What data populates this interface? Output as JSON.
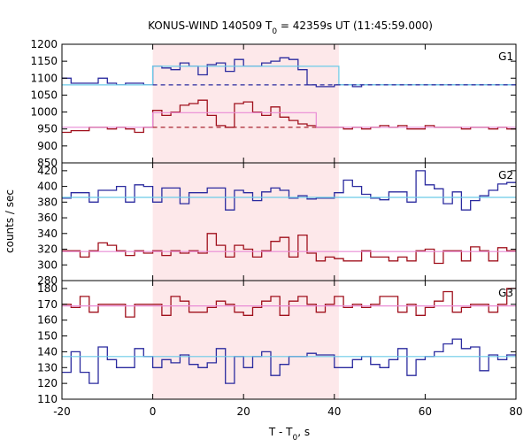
{
  "chart_data": {
    "type": "line",
    "title": "KONUS-WIND 140509 T",
    "title_sub": "0",
    "title_rest": " = 42359s UT (11:45:59.000)",
    "xlabel": "T - T",
    "xlabel_sub": "0",
    "xlabel_rest": ", s",
    "ylabel": "counts / sec",
    "xlim": [
      -20,
      80
    ],
    "x_ticks": [
      -20,
      0,
      20,
      40,
      60,
      80
    ],
    "shaded_interval": [
      0,
      41
    ],
    "grid": false,
    "bin_width": 2,
    "colors": {
      "blue": "#2b2b9f",
      "red": "#a0101c",
      "cyan": "#6bcbe8",
      "pink": "#e98bd6",
      "shade": "#fde8ea"
    },
    "panels": [
      {
        "label": "G1",
        "ylim": [
          850,
          1200
        ],
        "y_ticks": [
          850,
          900,
          950,
          1000,
          1050,
          1100,
          1150,
          1200
        ],
        "series": [
          {
            "color_key": "blue",
            "x_start": -20,
            "values": [
              1100,
              1085,
              1085,
              1085,
              1100,
              1085,
              1080,
              1085,
              1085,
              1080,
              1135,
              1130,
              1125,
              1145,
              1135,
              1110,
              1140,
              1145,
              1120,
              1155,
              1135,
              1135,
              1145,
              1150,
              1160,
              1155,
              1125,
              1080,
              1075,
              1075,
              1080,
              1080,
              1075,
              1080,
              1080,
              1080,
              1080,
              1080,
              1080,
              1080,
              1080,
              1080,
              1080,
              1080,
              1080,
              1080,
              1080,
              1080,
              1080,
              1080
            ]
          },
          {
            "color_key": "red",
            "x_start": -20,
            "values": [
              940,
              945,
              945,
              955,
              955,
              950,
              955,
              950,
              940,
              955,
              1005,
              990,
              1000,
              1020,
              1025,
              1035,
              990,
              960,
              955,
              1025,
              1030,
              1000,
              990,
              1015,
              985,
              975,
              965,
              960,
              955,
              955,
              955,
              950,
              955,
              950,
              955,
              960,
              955,
              960,
              950,
              950,
              960,
              955,
              955,
              955,
              950,
              955,
              955,
              950,
              955,
              950
            ]
          },
          {
            "color_key": "cyan",
            "style": "solid",
            "segments": [
              [
                -20,
                0,
                1080
              ],
              [
                0,
                41,
                1135
              ],
              [
                41,
                80,
                1080
              ]
            ]
          },
          {
            "color_key": "blue",
            "style": "dashed",
            "segments": [
              [
                0,
                80,
                1080
              ]
            ]
          },
          {
            "color_key": "pink",
            "style": "solid",
            "segments": [
              [
                -20,
                0,
                955
              ],
              [
                0,
                36,
                998
              ],
              [
                36,
                80,
                955
              ]
            ]
          },
          {
            "color_key": "red",
            "style": "dashed",
            "segments": [
              [
                0,
                36,
                955
              ]
            ]
          }
        ]
      },
      {
        "label": "G2",
        "ylim": [
          280,
          430
        ],
        "y_ticks": [
          280,
          300,
          320,
          340,
          360,
          380,
          400,
          420
        ],
        "series": [
          {
            "color_key": "blue",
            "x_start": -20,
            "values": [
              385,
              392,
              392,
              380,
              395,
              395,
              400,
              380,
              402,
              400,
              380,
              398,
              398,
              378,
              392,
              392,
              398,
              398,
              370,
              395,
              392,
              382,
              393,
              398,
              395,
              385,
              388,
              384,
              385,
              385,
              392,
              408,
              400,
              390,
              385,
              383,
              393,
              393,
              380,
              420,
              402,
              397,
              378,
              393,
              370,
              382,
              388,
              395,
              403,
              405
            ]
          },
          {
            "color_key": "red",
            "x_start": -20,
            "values": [
              318,
              318,
              310,
              318,
              328,
              325,
              318,
              312,
              318,
              315,
              318,
              312,
              318,
              315,
              318,
              315,
              340,
              325,
              310,
              325,
              320,
              310,
              318,
              330,
              335,
              310,
              338,
              315,
              305,
              310,
              308,
              305,
              305,
              318,
              310,
              310,
              305,
              310,
              305,
              318,
              320,
              302,
              318,
              318,
              305,
              323,
              318,
              305,
              322,
              318
            ]
          },
          {
            "color_key": "cyan",
            "style": "solid",
            "segments": [
              [
                -20,
                80,
                386
              ]
            ]
          },
          {
            "color_key": "pink",
            "style": "solid",
            "segments": [
              [
                -20,
                80,
                317
              ]
            ]
          }
        ]
      },
      {
        "label": "G3",
        "ylim": [
          110,
          185
        ],
        "y_ticks": [
          110,
          120,
          130,
          140,
          150,
          160,
          170,
          180
        ],
        "series": [
          {
            "color_key": "red",
            "x_start": -20,
            "values": [
              170,
              168,
              175,
              165,
              170,
              170,
              170,
              162,
              170,
              170,
              170,
              163,
              175,
              172,
              165,
              165,
              168,
              172,
              170,
              165,
              163,
              168,
              172,
              175,
              163,
              172,
              175,
              170,
              165,
              170,
              175,
              168,
              170,
              168,
              170,
              175,
              175,
              165,
              170,
              163,
              168,
              172,
              178,
              165,
              168,
              170,
              170,
              165,
              170,
              180
            ]
          },
          {
            "color_key": "blue",
            "x_start": -20,
            "values": [
              127,
              140,
              127,
              120,
              143,
              135,
              130,
              130,
              142,
              137,
              130,
              135,
              133,
              138,
              132,
              130,
              133,
              142,
              120,
              137,
              130,
              137,
              140,
              125,
              132,
              137,
              137,
              139,
              138,
              138,
              130,
              130,
              135,
              137,
              132,
              130,
              135,
              142,
              125,
              135,
              137,
              140,
              145,
              148,
              142,
              143,
              128,
              138,
              135,
              138
            ]
          },
          {
            "color_key": "pink",
            "style": "solid",
            "segments": [
              [
                -20,
                80,
                169
              ]
            ]
          },
          {
            "color_key": "cyan",
            "style": "solid",
            "segments": [
              [
                -20,
                80,
                137
              ]
            ]
          }
        ]
      }
    ]
  }
}
